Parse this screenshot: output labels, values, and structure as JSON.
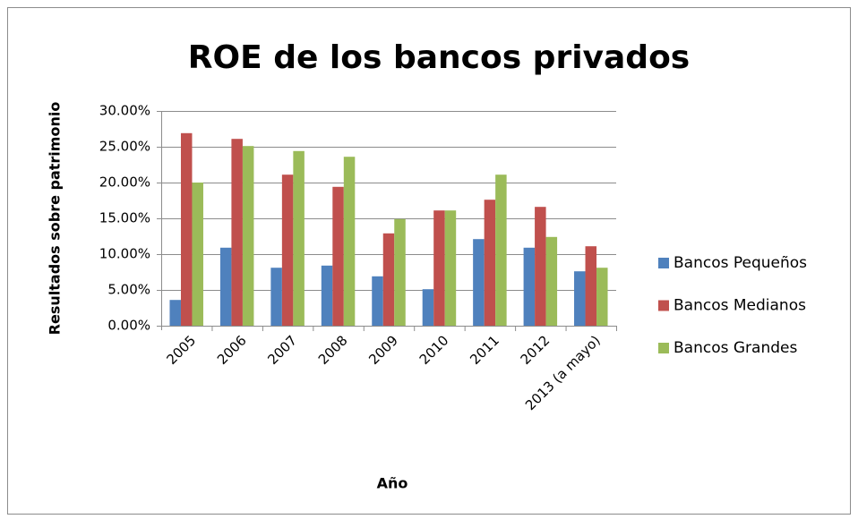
{
  "chart_data": {
    "type": "bar",
    "title": "ROE de los bancos privados",
    "x_label": "Año",
    "y_label": "Resultados sobre patrimonio",
    "categories": [
      "2005",
      "2006",
      "2007",
      "2008",
      "2009",
      "2010",
      "2011",
      "2012",
      "2013 (a mayo)"
    ],
    "series": [
      {
        "name": "Bancos Pequeños",
        "color": "#4f81bd",
        "values": [
          3.6,
          10.9,
          8.1,
          8.4,
          6.9,
          5.1,
          12.1,
          10.9,
          7.6
        ]
      },
      {
        "name": "Bancos Medianos",
        "color": "#c0504d",
        "values": [
          26.9,
          26.1,
          21.1,
          19.4,
          12.9,
          16.1,
          17.6,
          16.6,
          11.1
        ]
      },
      {
        "name": "Bancos Grandes",
        "color": "#9bbb59",
        "values": [
          20.0,
          25.1,
          24.4,
          23.6,
          14.9,
          16.1,
          21.1,
          12.4,
          8.1
        ]
      }
    ],
    "ylim": [
      0,
      30
    ],
    "yticks": [
      {
        "value": 0,
        "label": "0.00%"
      },
      {
        "value": 5,
        "label": "5.00%"
      },
      {
        "value": 10,
        "label": "10.00%"
      },
      {
        "value": 15,
        "label": "15.00%"
      },
      {
        "value": 20,
        "label": "20.00%"
      },
      {
        "value": 25,
        "label": "25.00%"
      },
      {
        "value": 30,
        "label": "30.00%"
      }
    ],
    "grid": true,
    "legend": "right"
  }
}
